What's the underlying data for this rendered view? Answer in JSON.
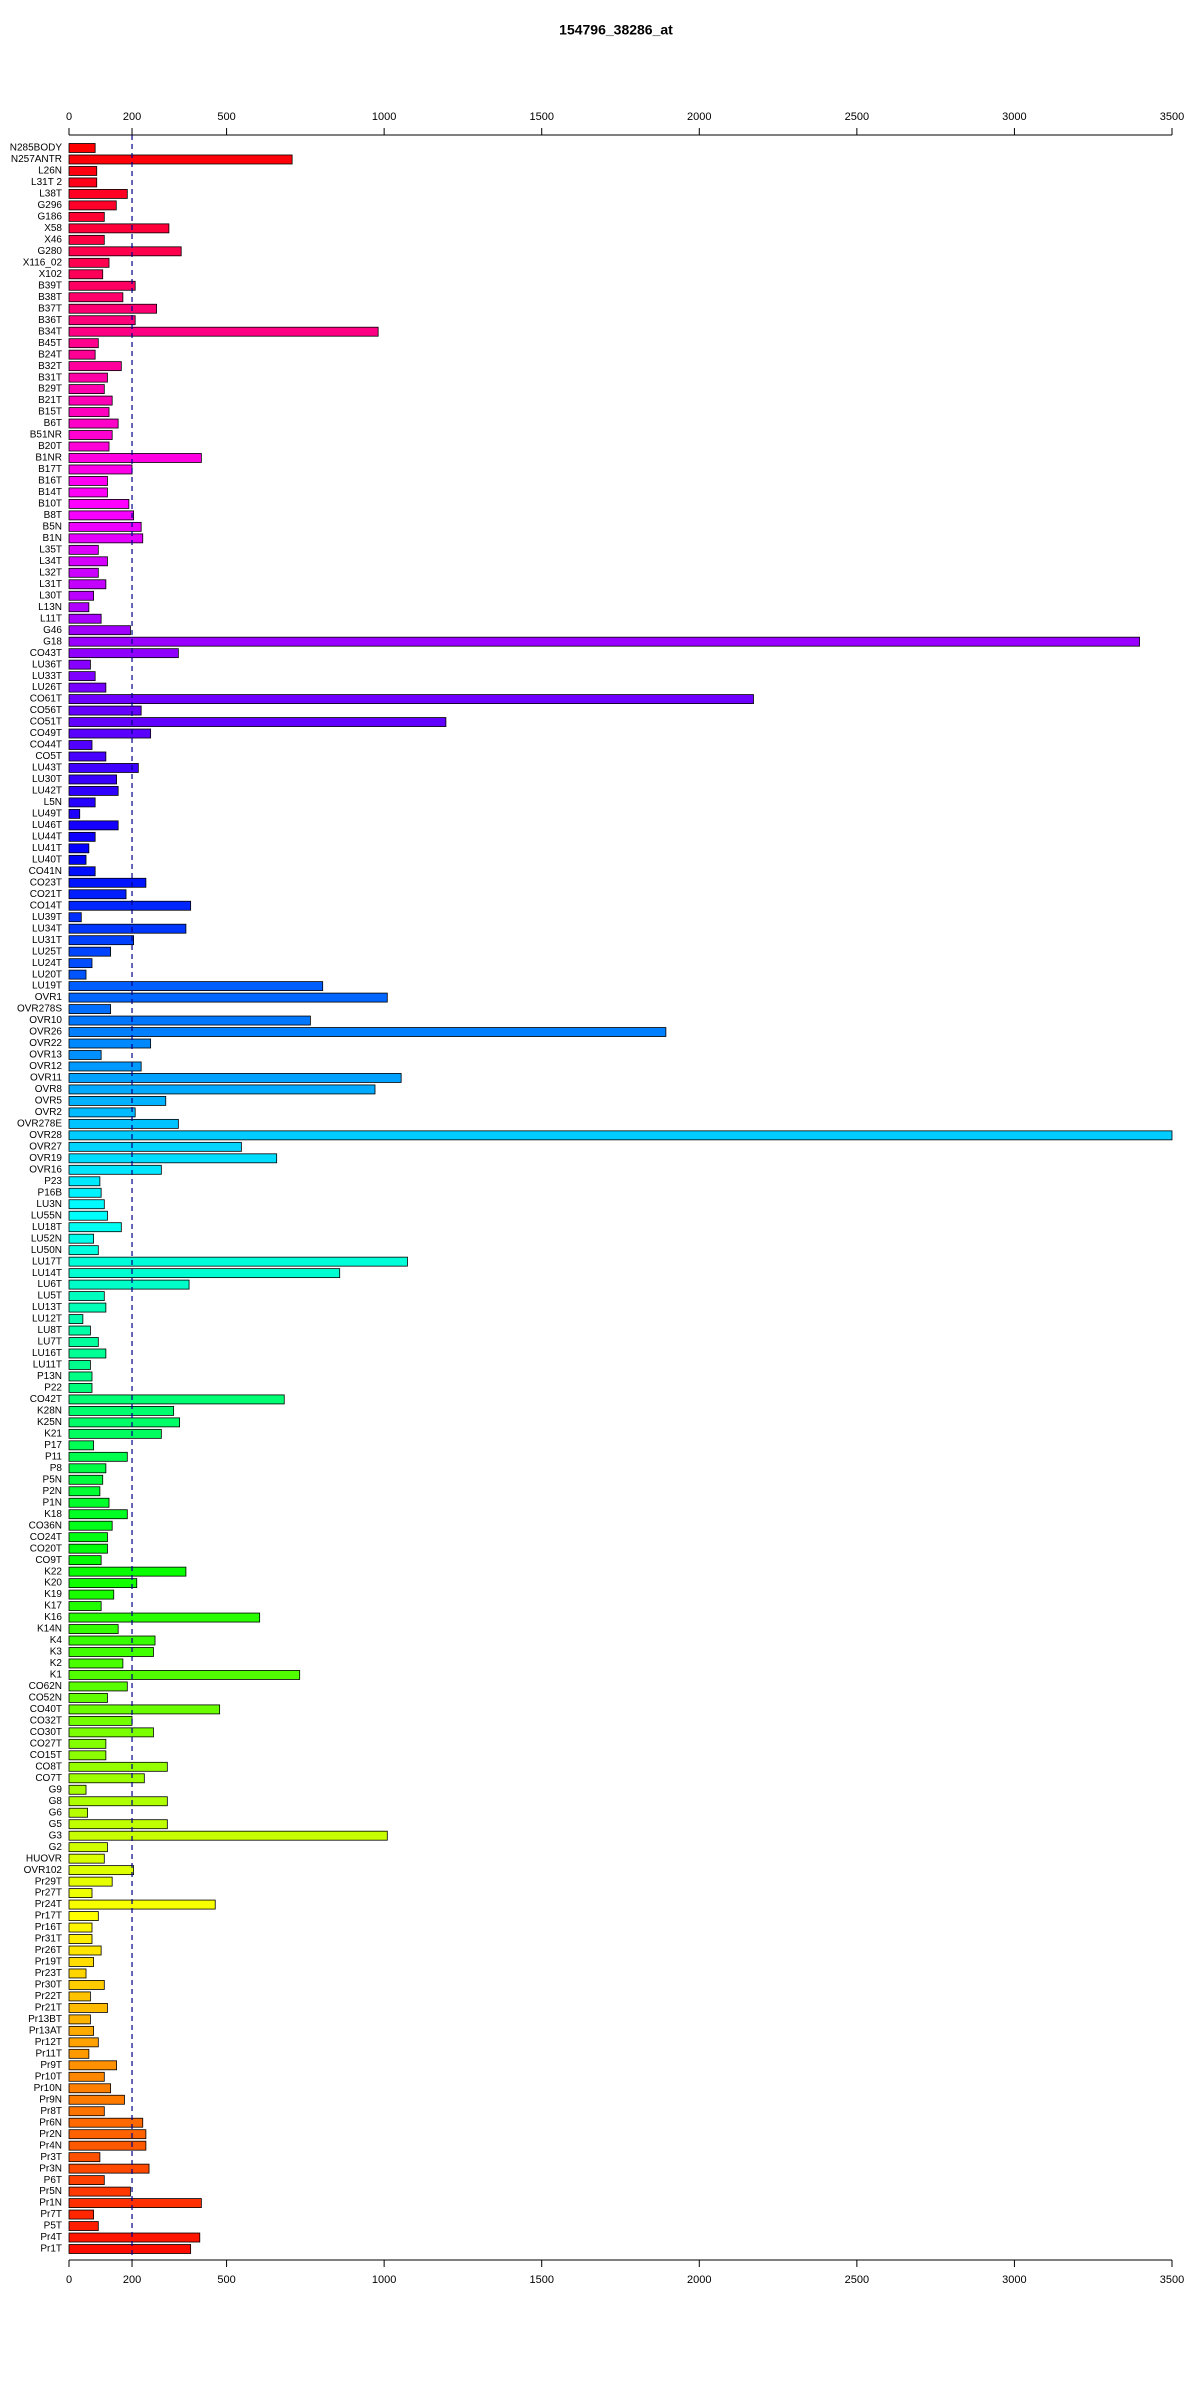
{
  "chart_data": {
    "type": "barh",
    "title": "154796_38286_at",
    "categories": [
      "N285BODY",
      "N257ANTR",
      "L26N",
      "L31T 2",
      "L38T",
      "G296",
      "G186",
      "X58",
      "X46",
      "G280",
      "X116_02",
      "X102",
      "B39T",
      "B38T",
      "B37T",
      "B36T",
      "B34T",
      "B45T",
      "B24T",
      "B32T",
      "B31T",
      "B29T",
      "B21T",
      "B15T",
      "B6T",
      "B51NR",
      "B20T",
      "B1NR",
      "B17T",
      "B16T",
      "B14T",
      "B10T",
      "B8T",
      "B5N",
      "B1N",
      "L35T",
      "L34T",
      "L32T",
      "L31T",
      "L30T",
      "L13N",
      "L11T",
      "G46",
      "G18",
      "CO43T",
      "LU36T",
      "LU33T",
      "LU26T",
      "CO61T",
      "CO56T",
      "CO51T",
      "CO49T",
      "CO44T",
      "CO5T",
      "LU43T",
      "LU30T",
      "LU42T",
      "L5N",
      "LU49T",
      "LU46T",
      "LU44T",
      "LU41T",
      "LU40T",
      "CO41N",
      "CO23T",
      "CO21T",
      "CO14T",
      "LU39T",
      "LU34T",
      "LU31T",
      "LU25T",
      "LU24T",
      "LU20T",
      "LU19T",
      "OVR1",
      "OVR278S",
      "OVR10",
      "OVR26",
      "OVR22",
      "OVR13",
      "OVR12",
      "OVR11",
      "OVR8",
      "OVR5",
      "OVR2",
      "OVR278E",
      "OVR28",
      "OVR27",
      "OVR19",
      "OVR16",
      "P23",
      "P16B",
      "LU3N",
      "LU55N",
      "LU18T",
      "LU52N",
      "LU50N",
      "LU17T",
      "LU14T",
      "LU6T",
      "LU5T",
      "LU13T",
      "LU12T",
      "LU8T",
      "LU7T",
      "LU16T",
      "LU11T",
      "P13N",
      "P22",
      "CO42T",
      "K28N",
      "K25N",
      "K21",
      "P17",
      "P11",
      "P8",
      "P5N",
      "P2N",
      "P1N",
      "K18",
      "CO36N",
      "CO24T",
      "CO20T",
      "CO9T",
      "K22",
      "K20",
      "K19",
      "K17",
      "K16",
      "K14N",
      "K4",
      "K3",
      "K2",
      "K1",
      "CO62N",
      "CO52N",
      "CO40T",
      "CO32T",
      "CO30T",
      "CO27T",
      "CO15T",
      "CO8T",
      "CO7T",
      "G9",
      "G8",
      "G6",
      "G5",
      "G3",
      "G2",
      "HUOVR",
      "OVR102",
      "Pr29T",
      "Pr27T",
      "Pr24T",
      "Pr17T",
      "Pr16T",
      "Pr31T",
      "Pr26T",
      "Pr19T",
      "Pr23T",
      "Pr30T",
      "Pr22T",
      "Pr21T",
      "Pr13BT",
      "Pr13AT",
      "Pr12T",
      "Pr11T",
      "Pr9T",
      "Pr10T",
      "Pr10N",
      "Pr9N",
      "Pr8T",
      "Pr6N",
      "Pr2N",
      "Pr4N",
      "Pr3T",
      "Pr3N",
      "P6T",
      "Pr5N",
      "Pr1N",
      "Pr7T",
      "P5T",
      "Pr4T",
      "Pr1T"
    ],
    "values": [
      83,
      708,
      88,
      88,
      185,
      150,
      112,
      317,
      112,
      356,
      127,
      107,
      210,
      171,
      278,
      210,
      981,
      93,
      83,
      166,
      122,
      112,
      137,
      127,
      156,
      137,
      127,
      420,
      200,
      122,
      122,
      190,
      205,
      229,
      234,
      93,
      122,
      93,
      117,
      78,
      63,
      102,
      195,
      3397,
      347,
      68,
      83,
      117,
      2172,
      229,
      1196,
      259,
      73,
      117,
      220,
      151,
      156,
      83,
      34,
      156,
      83,
      63,
      54,
      83,
      244,
      181,
      386,
      39,
      371,
      205,
      132,
      73,
      54,
      805,
      1010,
      132,
      766,
      1894,
      259,
      102,
      229,
      1054,
      971,
      307,
      210,
      347,
      3500,
      547,
      659,
      293,
      98,
      102,
      112,
      122,
      166,
      78,
      93,
      1074,
      859,
      381,
      112,
      117,
      44,
      68,
      93,
      117,
      68,
      73,
      73,
      683,
      332,
      351,
      293,
      78,
      185,
      117,
      107,
      98,
      127,
      185,
      137,
      122,
      122,
      102,
      371,
      215,
      142,
      102,
      605,
      156,
      273,
      268,
      171,
      732,
      185,
      122,
      478,
      200,
      268,
      117,
      117,
      312,
      239,
      54,
      312,
      59,
      312,
      1010,
      122,
      112,
      205,
      137,
      73,
      464,
      93,
      73,
      73,
      102,
      78,
      54,
      112,
      68,
      122,
      68,
      78,
      93,
      63,
      151,
      112,
      132,
      176,
      112,
      234,
      244,
      244,
      98,
      254,
      112,
      195,
      420,
      78,
      93,
      415,
      386
    ],
    "colors": [
      "hsl(360,100%,50%)",
      "hsl(358,100%,50%)",
      "hsl(356,100%,50%)",
      "hsl(354,100%,50%)",
      "hsl(352,100%,50%)",
      "hsl(350,100%,50%)",
      "hsl(348,100%,50%)",
      "hsl(346,100%,50%)",
      "hsl(344,100%,50%)",
      "hsl(342,100%,50%)",
      "hsl(341,100%,50%)",
      "hsl(339,100%,50%)",
      "hsl(337,100%,50%)",
      "hsl(335,100%,50%)",
      "hsl(333,100%,50%)",
      "hsl(331,100%,50%)",
      "hsl(329,100%,50%)",
      "hsl(327,100%,50%)",
      "hsl(325,100%,50%)",
      "hsl(323,100%,50%)",
      "hsl(321,100%,50%)",
      "hsl(319,100%,50%)",
      "hsl(317,100%,50%)",
      "hsl(315,100%,50%)",
      "hsl(313,100%,50%)",
      "hsl(311,100%,50%)",
      "hsl(309,100%,50%)",
      "hsl(307,100%,50%)",
      "hsl(305,100%,50%)",
      "hsl(303,100%,50%)",
      "hsl(302,100%,50%)",
      "hsl(300,100%,50%)",
      "hsl(298,100%,50%)",
      "hsl(296,100%,50%)",
      "hsl(294,100%,50%)",
      "hsl(292,100%,50%)",
      "hsl(290,100%,50%)",
      "hsl(288,100%,50%)",
      "hsl(286,100%,50%)",
      "hsl(284,100%,50%)",
      "hsl(282,100%,50%)",
      "hsl(280,100%,50%)",
      "hsl(278,100%,50%)",
      "hsl(276,100%,50%)",
      "hsl(274,100%,50%)",
      "hsl(272,100%,50%)",
      "hsl(270,100%,50%)",
      "hsl(268,100%,50%)",
      "hsl(266,100%,50%)",
      "hsl(264,100%,50%)",
      "hsl(263,100%,50%)",
      "hsl(261,100%,50%)",
      "hsl(259,100%,50%)",
      "hsl(257,100%,50%)",
      "hsl(255,100%,50%)",
      "hsl(253,100%,50%)",
      "hsl(251,100%,50%)",
      "hsl(249,100%,50%)",
      "hsl(247,100%,50%)",
      "hsl(245,100%,50%)",
      "hsl(243,100%,50%)",
      "hsl(241,100%,50%)",
      "hsl(239,100%,50%)",
      "hsl(237,100%,50%)",
      "hsl(235,100%,50%)",
      "hsl(233,100%,50%)",
      "hsl(231,100%,50%)",
      "hsl(229,100%,50%)",
      "hsl(227,100%,50%)",
      "hsl(225,100%,50%)",
      "hsl(224,100%,50%)",
      "hsl(222,100%,50%)",
      "hsl(220,100%,50%)",
      "hsl(218,100%,50%)",
      "hsl(216,100%,50%)",
      "hsl(214,100%,50%)",
      "hsl(212,100%,50%)",
      "hsl(210,100%,50%)",
      "hsl(208,100%,50%)",
      "hsl(206,100%,50%)",
      "hsl(204,100%,50%)",
      "hsl(202,100%,50%)",
      "hsl(200,100%,50%)",
      "hsl(198,100%,50%)",
      "hsl(196,100%,50%)",
      "hsl(194,100%,50%)",
      "hsl(192,100%,50%)",
      "hsl(190,100%,50%)",
      "hsl(188,100%,50%)",
      "hsl(186,100%,50%)",
      "hsl(185,100%,50%)",
      "hsl(183,100%,50%)",
      "hsl(181,100%,50%)",
      "hsl(179,100%,50%)",
      "hsl(177,100%,50%)",
      "hsl(175,100%,50%)",
      "hsl(173,100%,50%)",
      "hsl(171,100%,50%)",
      "hsl(169,100%,50%)",
      "hsl(167,100%,50%)",
      "hsl(165,100%,50%)",
      "hsl(163,100%,50%)",
      "hsl(161,100%,50%)",
      "hsl(159,100%,50%)",
      "hsl(157,100%,50%)",
      "hsl(155,100%,50%)",
      "hsl(153,100%,50%)",
      "hsl(151,100%,50%)",
      "hsl(149,100%,50%)",
      "hsl(147,100%,50%)",
      "hsl(146,100%,50%)",
      "hsl(144,100%,50%)",
      "hsl(142,100%,50%)",
      "hsl(140,100%,50%)",
      "hsl(138,100%,50%)",
      "hsl(136,100%,50%)",
      "hsl(134,100%,50%)",
      "hsl(132,100%,50%)",
      "hsl(130,100%,50%)",
      "hsl(128,100%,50%)",
      "hsl(126,100%,50%)",
      "hsl(124,100%,50%)",
      "hsl(122,100%,50%)",
      "hsl(120,100%,50%)",
      "hsl(118,100%,50%)",
      "hsl(116,100%,50%)",
      "hsl(114,100%,50%)",
      "hsl(112,100%,50%)",
      "hsl(110,100%,50%)",
      "hsl(108,100%,50%)",
      "hsl(107,100%,50%)",
      "hsl(105,100%,50%)",
      "hsl(103,100%,50%)",
      "hsl(101,100%,50%)",
      "hsl(99,100%,50%)",
      "hsl(97,100%,50%)",
      "hsl(95,100%,50%)",
      "hsl(93,100%,50%)",
      "hsl(91,100%,50%)",
      "hsl(89,100%,50%)",
      "hsl(87,100%,50%)",
      "hsl(85,100%,50%)",
      "hsl(83,100%,50%)",
      "hsl(81,100%,50%)",
      "hsl(79,100%,50%)",
      "hsl(77,100%,50%)",
      "hsl(75,100%,50%)",
      "hsl(73,100%,50%)",
      "hsl(71,100%,50%)",
      "hsl(69,100%,50%)",
      "hsl(68,100%,50%)",
      "hsl(66,100%,50%)",
      "hsl(64,100%,50%)",
      "hsl(62,100%,50%)",
      "hsl(60,100%,50%)",
      "hsl(58,100%,50%)",
      "hsl(56,100%,50%)",
      "hsl(54,100%,50%)",
      "hsl(52,100%,50%)",
      "hsl(50,100%,50%)",
      "hsl(48,100%,50%)",
      "hsl(46,100%,50%)",
      "hsl(44,100%,50%)",
      "hsl(42,100%,50%)",
      "hsl(40,100%,50%)",
      "hsl(38,100%,50%)",
      "hsl(36,100%,50%)",
      "hsl(34,100%,50%)",
      "hsl(32,100%,50%)",
      "hsl(30,100%,50%)",
      "hsl(29,100%,50%)",
      "hsl(27,100%,50%)",
      "hsl(25,100%,50%)",
      "hsl(23,100%,50%)",
      "hsl(21,100%,50%)",
      "hsl(19,100%,50%)",
      "hsl(17,100%,50%)",
      "hsl(15,100%,50%)",
      "hsl(13,100%,50%)",
      "hsl(11,100%,50%)",
      "hsl(9,100%,50%)",
      "hsl(7,100%,50%)",
      "hsl(5,100%,50%)",
      "hsl(3,100%,50%)"
    ],
    "xlim": [
      0,
      3500
    ],
    "xticks": [
      0,
      200,
      500,
      1000,
      1500,
      2000,
      2500,
      3000,
      3500
    ],
    "vline": 200,
    "vline_color": "#00008b"
  }
}
